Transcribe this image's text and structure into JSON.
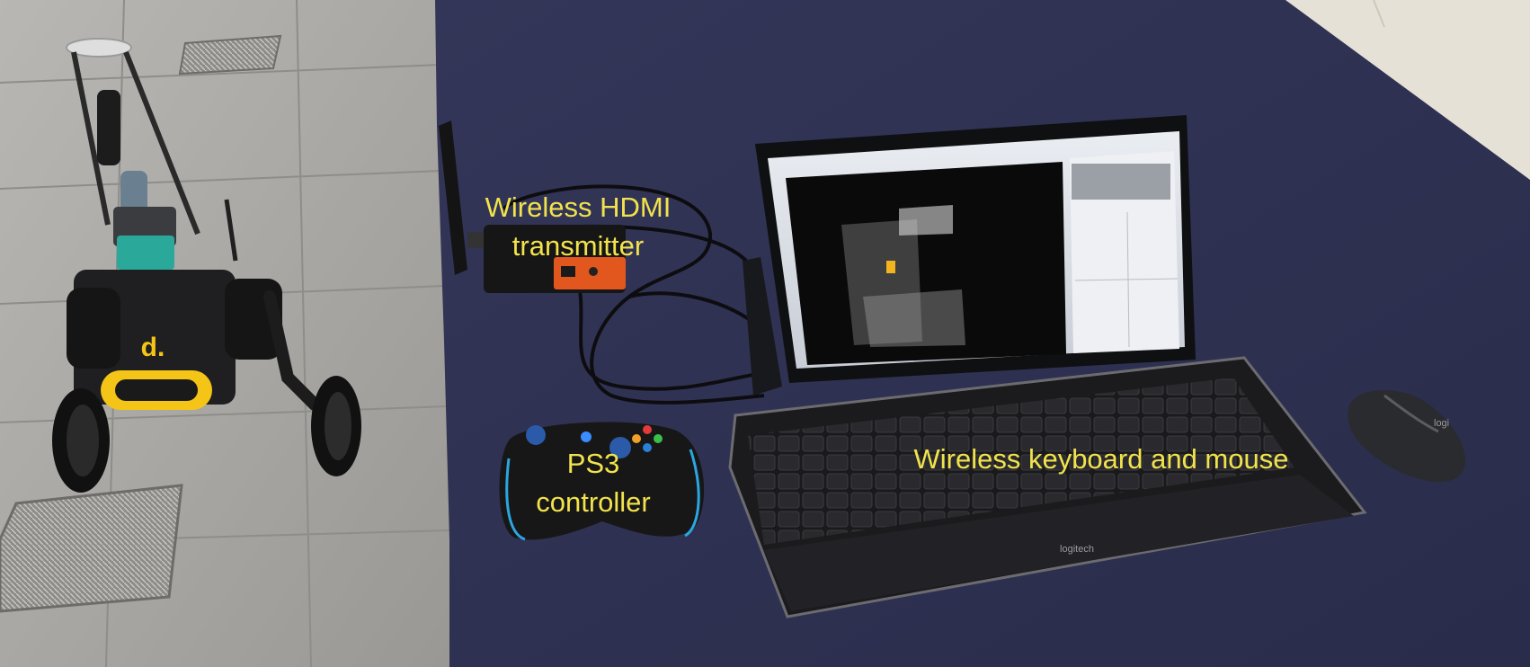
{
  "labels": {
    "hdmi_line1": "Wireless HDMI",
    "hdmi_line2": "transmitter",
    "ps3_line1": "PS3",
    "ps3_line2": "controller",
    "keyboard_mouse": "Wireless keyboard and mouse"
  },
  "brand_marks": {
    "robot": "d.",
    "keyboard": "logitech",
    "mouse": "logi"
  },
  "colors": {
    "label_text": "#f2e34c",
    "table": "#2f3152",
    "floor": "#a7a49f",
    "robot_accent": "#f4c516",
    "transmitter_face": "#e2571e"
  }
}
